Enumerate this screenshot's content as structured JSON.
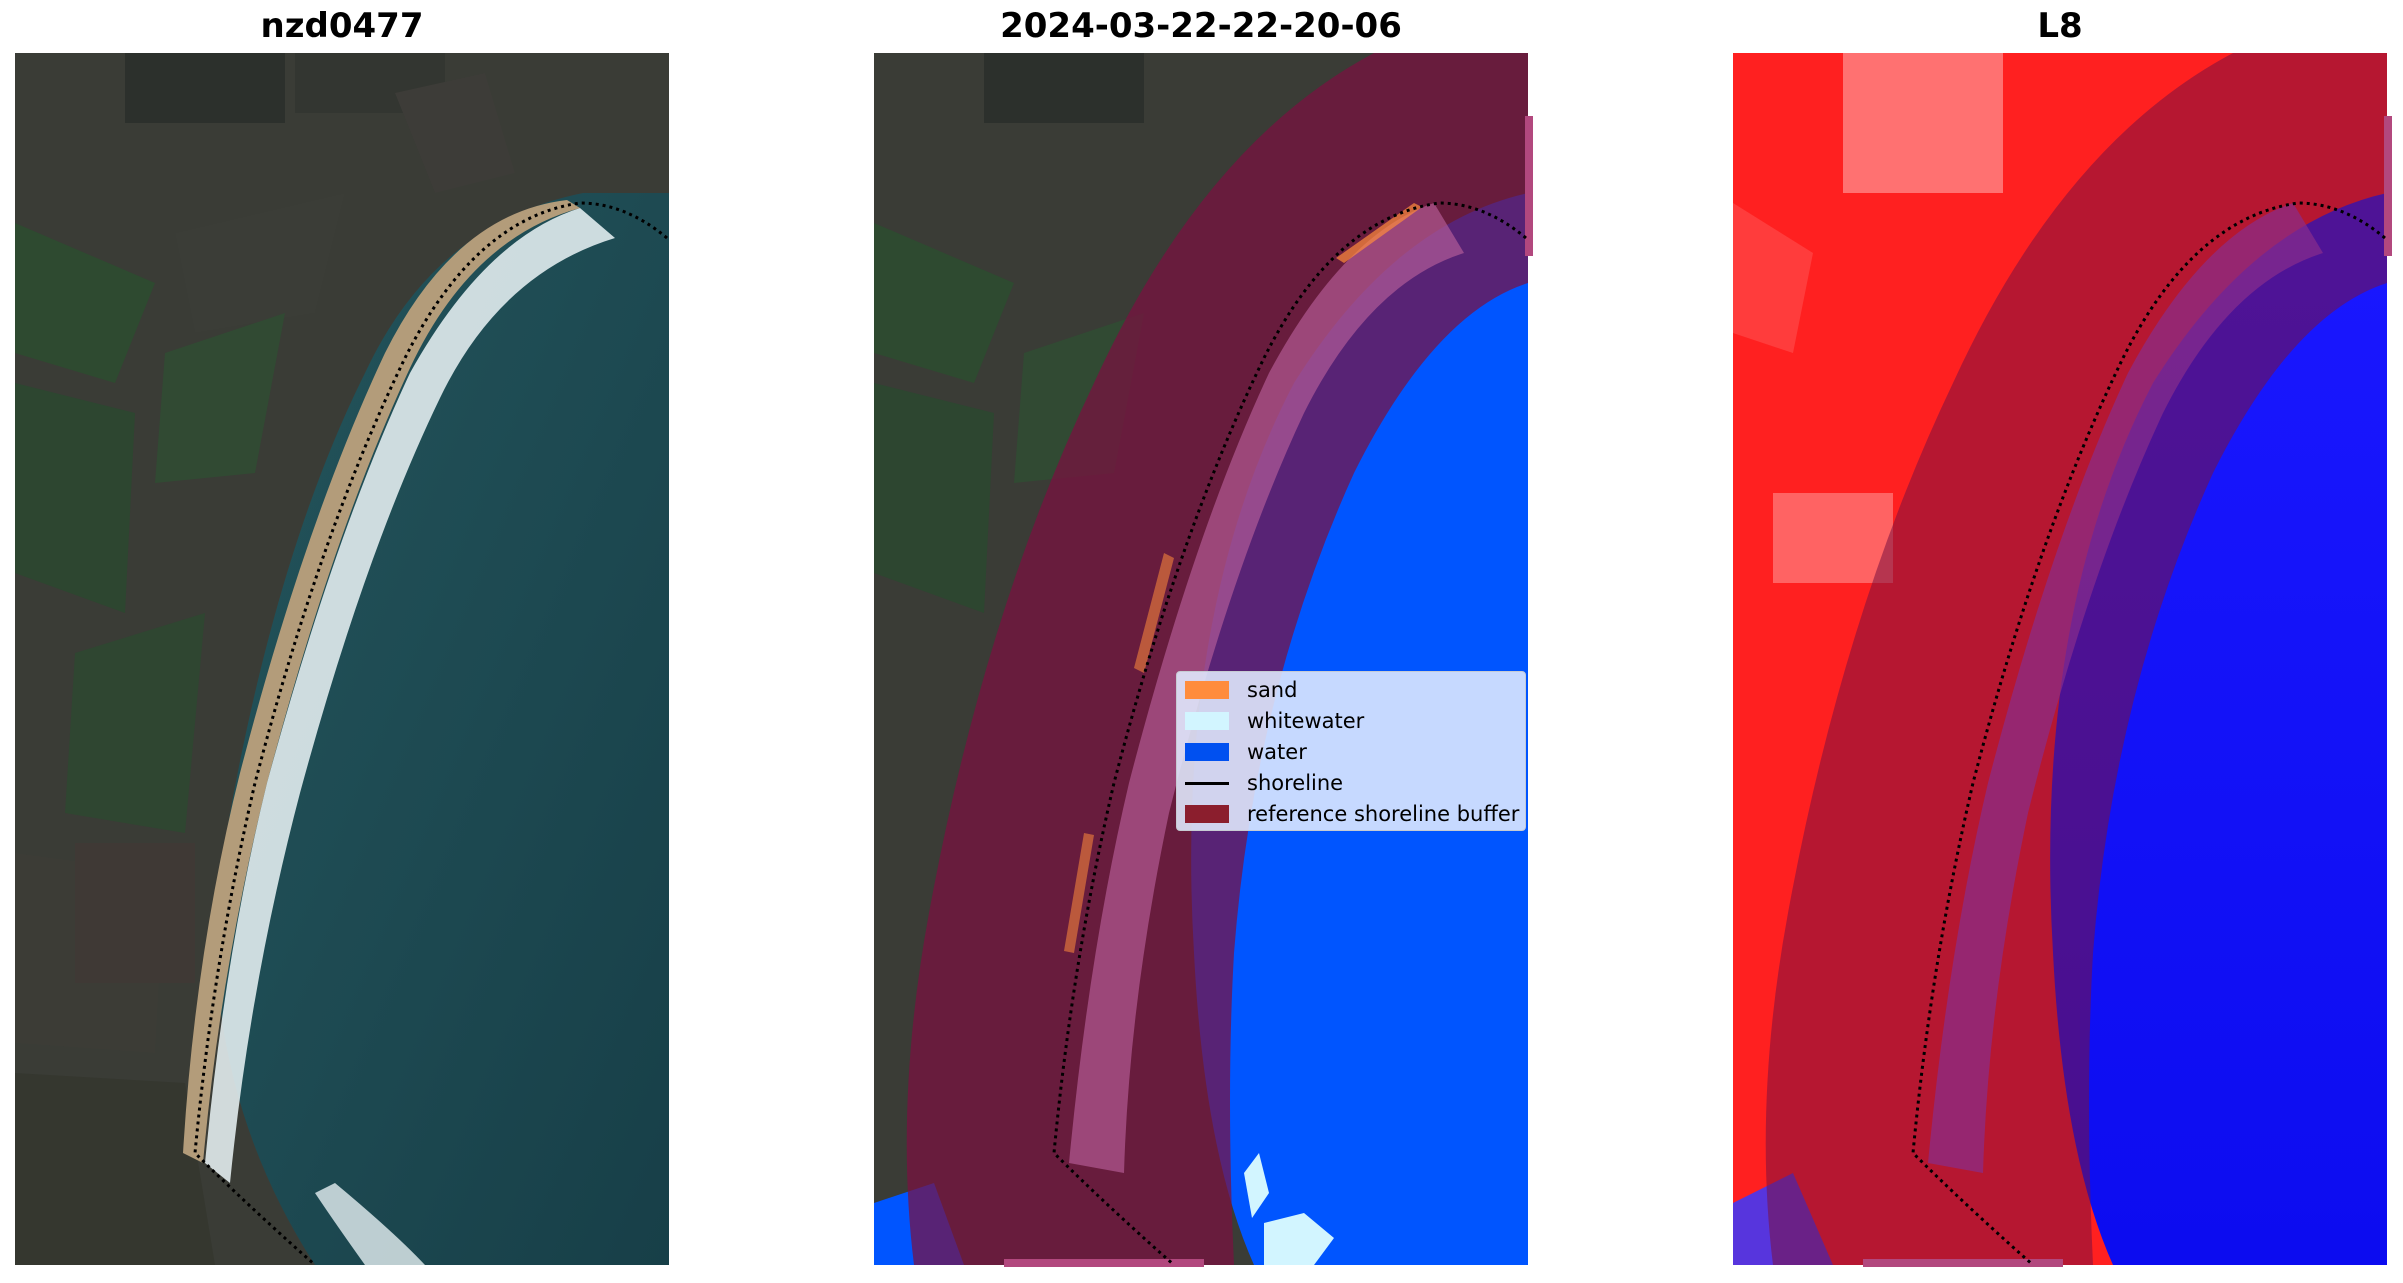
{
  "panels": [
    {
      "title": "nzd0477"
    },
    {
      "title": "2024-03-22-22-20-06"
    },
    {
      "title": "L8"
    }
  ],
  "legend": {
    "items": [
      {
        "label": "sand",
        "color": "#ff8c3c",
        "kind": "patch"
      },
      {
        "label": "whitewater",
        "color": "#d2f5ff",
        "kind": "patch"
      },
      {
        "label": "water",
        "color": "#0050f0",
        "kind": "patch"
      },
      {
        "label": "shoreline",
        "color": "#000000",
        "kind": "line"
      },
      {
        "label": "reference shoreline buffer",
        "color": "#8b1e2d",
        "kind": "patch"
      }
    ]
  },
  "colors": {
    "land_dark": "#3a3c36",
    "vegetation": "#2f4a30",
    "sea": "#1c4a52",
    "beach_sand": "#b09a78",
    "surf": "#e6f2f4",
    "classified_water": "#0055ff",
    "buffer_overlay": "#7a1040",
    "buffer_tab": "#b2487e",
    "index_land": "#ff2020",
    "index_water": "#1414ff"
  }
}
